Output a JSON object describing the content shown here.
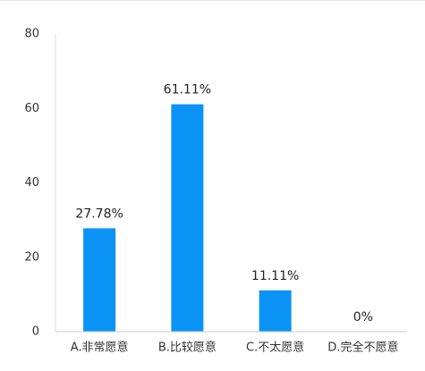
{
  "chart_data": {
    "type": "bar",
    "categories": [
      "A.非常愿意",
      "B.比较愿意",
      "C.不太愿意",
      "D.完全不愿意"
    ],
    "values": [
      27.78,
      61.11,
      11.11,
      0
    ],
    "value_labels": [
      "27.78%",
      "61.11%",
      "11.11%",
      "0%"
    ],
    "color": "#0a93f5",
    "ylim": [
      0,
      80
    ],
    "yticks": [
      0,
      20,
      40,
      60,
      80
    ],
    "grid": false
  }
}
